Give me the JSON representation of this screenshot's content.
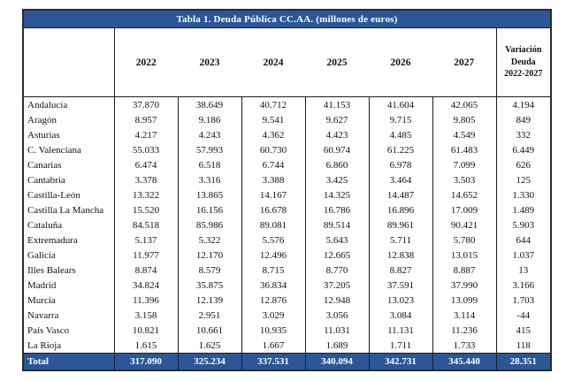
{
  "colors": {
    "accent_blue": "#2b5799",
    "header_text": "#ffffff",
    "border": "#1c1c1c",
    "body_text": "#111111"
  },
  "chart_data": {
    "type": "table",
    "title": "Tabla 1. Deuda Pública CC.AA. (millones de euros)",
    "region_header": "",
    "years": [
      "2022",
      "2023",
      "2024",
      "2025",
      "2026",
      "2027"
    ],
    "variation_header_lines": [
      "Variación",
      "Deuda",
      "2022-2027"
    ],
    "rows": [
      {
        "label": "Andalucía",
        "values": [
          "37.870",
          "38.649",
          "40.712",
          "41.153",
          "41.604",
          "42.065"
        ],
        "variation": "4.194"
      },
      {
        "label": "Aragón",
        "values": [
          "8.957",
          "9.186",
          "9.541",
          "9.627",
          "9.715",
          "9.805"
        ],
        "variation": "849"
      },
      {
        "label": "Asturias",
        "values": [
          "4.217",
          "4.243",
          "4.362",
          "4.423",
          "4.485",
          "4.549"
        ],
        "variation": "332"
      },
      {
        "label": "C. Valenciana",
        "values": [
          "55.033",
          "57.993",
          "60.730",
          "60.974",
          "61.225",
          "61.483"
        ],
        "variation": "6.449"
      },
      {
        "label": "Canarias",
        "values": [
          "6.474",
          "6.518",
          "6.744",
          "6.860",
          "6.978",
          "7.099"
        ],
        "variation": "626"
      },
      {
        "label": "Cantabria",
        "values": [
          "3.378",
          "3.316",
          "3.388",
          "3.425",
          "3.464",
          "3.503"
        ],
        "variation": "125"
      },
      {
        "label": "Castilla-León",
        "values": [
          "13.322",
          "13.865",
          "14.167",
          "14.325",
          "14.487",
          "14.652"
        ],
        "variation": "1.330"
      },
      {
        "label": "Castilla La Mancha",
        "values": [
          "15.520",
          "16.156",
          "16.678",
          "16.786",
          "16.896",
          "17.009"
        ],
        "variation": "1.489"
      },
      {
        "label": "Cataluña",
        "values": [
          "84.518",
          "85.986",
          "89.081",
          "89.514",
          "89.961",
          "90.421"
        ],
        "variation": "5.903"
      },
      {
        "label": "Extremadura",
        "values": [
          "5.137",
          "5.322",
          "5.576",
          "5.643",
          "5.711",
          "5.780"
        ],
        "variation": "644"
      },
      {
        "label": "Galicia",
        "values": [
          "11.977",
          "12.170",
          "12.496",
          "12.665",
          "12.838",
          "13.015"
        ],
        "variation": "1.037"
      },
      {
        "label": "Illes Balears",
        "values": [
          "8.874",
          "8.579",
          "8.715",
          "8.770",
          "8.827",
          "8.887"
        ],
        "variation": "13"
      },
      {
        "label": "Madrid",
        "values": [
          "34.824",
          "35.875",
          "36.834",
          "37.205",
          "37.591",
          "37.990"
        ],
        "variation": "3.166"
      },
      {
        "label": "Murcia",
        "values": [
          "11.396",
          "12.139",
          "12.876",
          "12.948",
          "13.023",
          "13.099"
        ],
        "variation": "1.703"
      },
      {
        "label": "Navarra",
        "values": [
          "3.158",
          "2.951",
          "3.029",
          "3.056",
          "3.084",
          "3.114"
        ],
        "variation": "-44"
      },
      {
        "label": "País Vasco",
        "values": [
          "10.821",
          "10.661",
          "10.935",
          "11.031",
          "11.131",
          "11.236"
        ],
        "variation": "415"
      },
      {
        "label": "La Rioja",
        "values": [
          "1.615",
          "1.625",
          "1.667",
          "1.689",
          "1.711",
          "1.733"
        ],
        "variation": "118"
      }
    ],
    "total": {
      "label": "Total",
      "values": [
        "317.090",
        "325.234",
        "337.531",
        "340.094",
        "342.731",
        "345.440"
      ],
      "variation": "28.351"
    }
  }
}
